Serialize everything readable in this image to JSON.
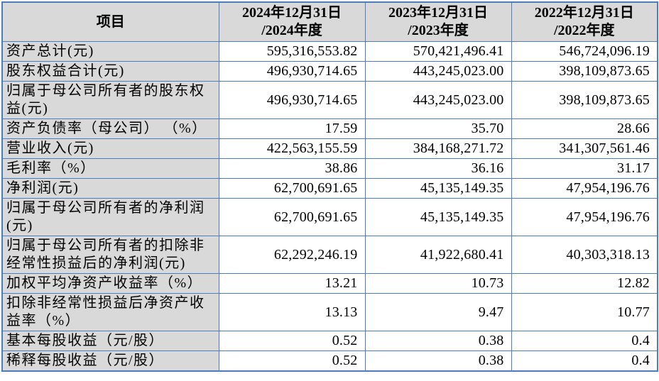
{
  "table": {
    "item_header": "项目",
    "columns": [
      {
        "line1": "2024年12月31日",
        "line2": "/2024年度"
      },
      {
        "line1": "2023年12月31日",
        "line2": "/2023年度"
      },
      {
        "line1": "2022年12月31日",
        "line2": "/2022年度"
      }
    ],
    "rows": [
      {
        "label": "资产总计(元)",
        "y2024": "595,316,553.82",
        "y2023": "570,421,496.41",
        "y2022": "546,724,096.19"
      },
      {
        "label": "股东权益合计(元)",
        "y2024": "496,930,714.65",
        "y2023": "443,245,023.00",
        "y2022": "398,109,873.65"
      },
      {
        "label": "归属于母公司所有者的股东权益(元)",
        "y2024": "496,930,714.65",
        "y2023": "443,245,023.00",
        "y2022": "398,109,873.65"
      },
      {
        "label": "资产负债率（母公司） （%）",
        "y2024": "17.59",
        "y2023": "35.70",
        "y2022": "28.66"
      },
      {
        "label": "营业收入(元)",
        "y2024": "422,563,155.59",
        "y2023": "384,168,271.72",
        "y2022": "341,307,561.46"
      },
      {
        "label": "毛利率（%）",
        "y2024": "38.86",
        "y2023": "36.16",
        "y2022": "31.17"
      },
      {
        "label": "净利润(元)",
        "y2024": "62,700,691.65",
        "y2023": "45,135,149.35",
        "y2022": "47,954,196.76"
      },
      {
        "label": "归属于母公司所有者的净利润(元)",
        "y2024": "62,700,691.65",
        "y2023": "45,135,149.35",
        "y2022": "47,954,196.76"
      },
      {
        "label": "归属于母公司所有者的扣除非经常性损益后的净利润(元)",
        "y2024": "62,292,246.19",
        "y2023": "41,922,680.41",
        "y2022": "40,303,318.13"
      },
      {
        "label": "加权平均净资产收益率（%）",
        "y2024": "13.21",
        "y2023": "10.73",
        "y2022": "12.82"
      },
      {
        "label": "扣除非经常性损益后净资产收益率（%）",
        "y2024": "13.13",
        "y2023": "9.47",
        "y2022": "10.77"
      },
      {
        "label": "基本每股收益（元/股）",
        "y2024": "0.52",
        "y2023": "0.38",
        "y2022": "0.4"
      },
      {
        "label": "稀释每股收益（元/股）",
        "y2024": "0.52",
        "y2023": "0.38",
        "y2022": "0.4"
      }
    ],
    "colors": {
      "border": "#4a7ebc",
      "header_bg": "#d9d9d9",
      "cell_bg": "#ffffff",
      "text": "#000000"
    }
  }
}
